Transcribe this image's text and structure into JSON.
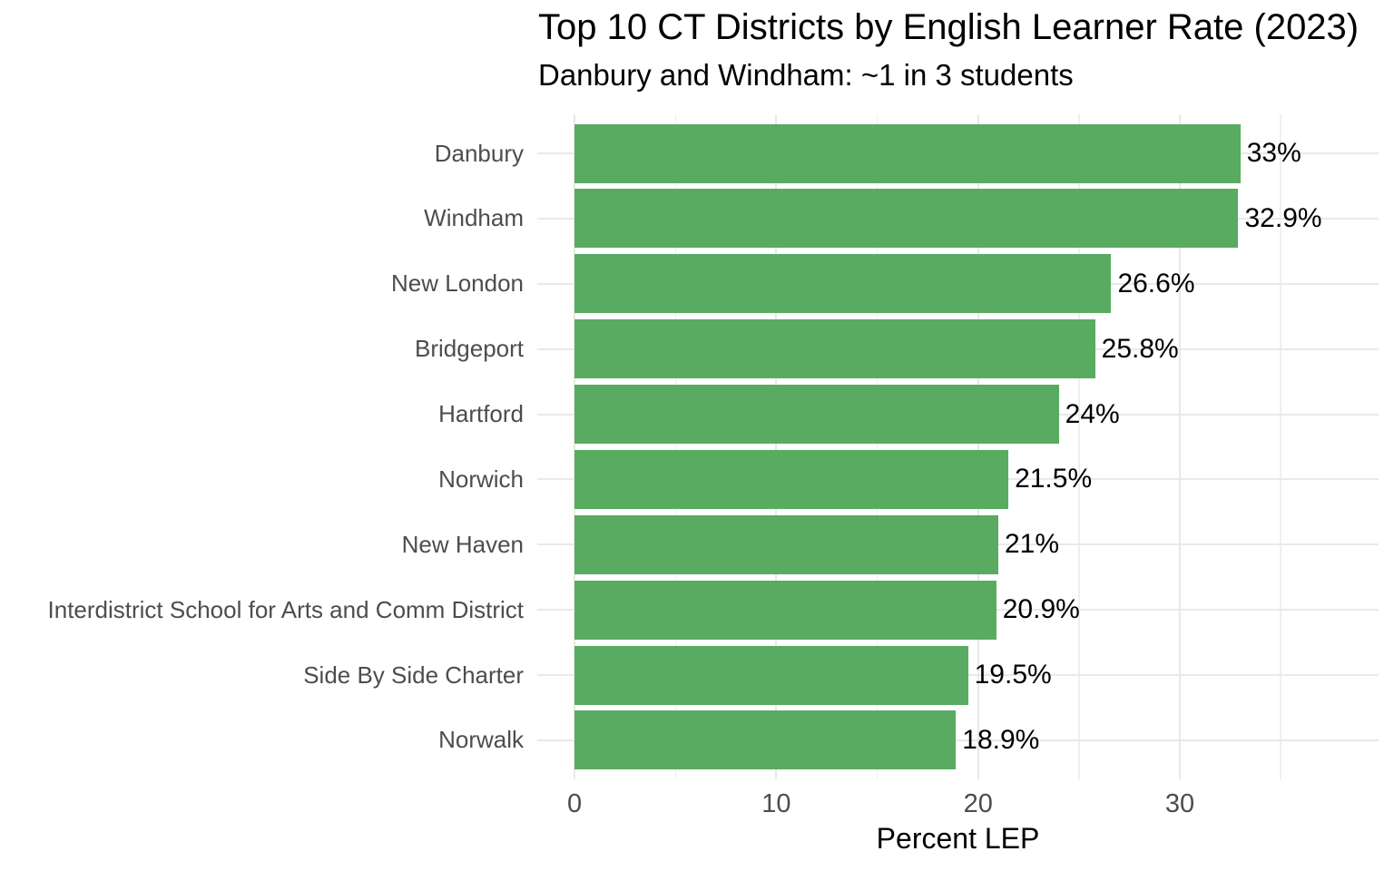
{
  "chart_data": {
    "type": "bar",
    "orientation": "horizontal",
    "title": "Top 10 CT Districts by English Learner Rate (2023)",
    "subtitle": "Danbury and Windham: ~1 in 3 students",
    "xlabel": "Percent LEP",
    "ylabel": "",
    "categories": [
      "Danbury",
      "Windham",
      "New London",
      "Bridgeport",
      "Hartford",
      "Norwich",
      "New Haven",
      "Interdistrict School for Arts and Comm District",
      "Side By Side Charter",
      "Norwalk"
    ],
    "values": [
      33,
      32.9,
      26.6,
      25.8,
      24,
      21.5,
      21,
      20.9,
      19.5,
      18.9
    ],
    "value_labels": [
      "33%",
      "32.9%",
      "26.6%",
      "25.8%",
      "24%",
      "21.5%",
      "21%",
      "20.9%",
      "19.5%",
      "18.9%"
    ],
    "x_ticks_major": [
      0,
      10,
      20,
      30
    ],
    "x_ticks_minor": [
      5,
      15,
      25,
      35
    ],
    "xlim": [
      -1.85,
      39.85
    ],
    "grid": "on",
    "legend": "none",
    "colors": {
      "bar": "#58ab60",
      "grid_major": "#e8e8e8",
      "grid_minor": "#efefef",
      "axis_text": "#4d4d4d",
      "text": "#000000",
      "background": "#ffffff"
    }
  }
}
